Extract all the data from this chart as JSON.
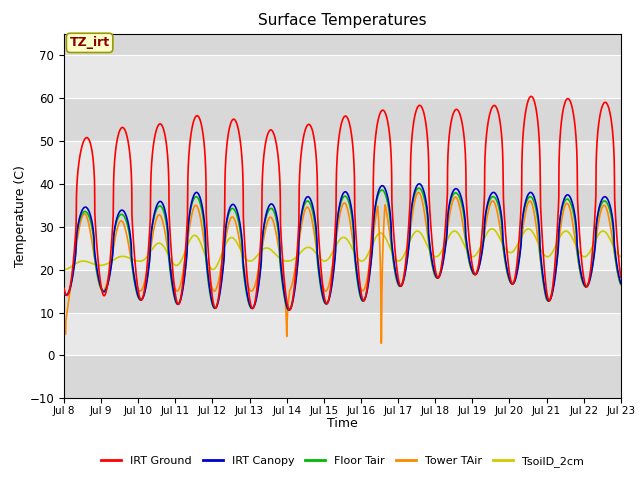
{
  "title": "Surface Temperatures",
  "xlabel": "Time",
  "ylabel": "Temperature (C)",
  "ylim": [
    -10,
    75
  ],
  "xlim": [
    0,
    15
  ],
  "annotation_text": "TZ_irt",
  "annotation_bg": "#ffffcc",
  "annotation_border": "#999900",
  "annotation_text_color": "#880000",
  "grid_color": "#dddddd",
  "bg_color": "#e8e8e8",
  "bg_band_color": "#d8d8d8",
  "xtick_labels": [
    "Jul 8",
    "Jul 9",
    "Jul 10",
    "Jul 11",
    "Jul 12",
    "Jul 13",
    "Jul 14",
    "Jul 15",
    "Jul 16",
    "Jul 17",
    "Jul 18",
    "Jul 19",
    "Jul 20",
    "Jul 21",
    "Jul 22",
    "Jul 23"
  ],
  "legend_entries": [
    "IRT Ground",
    "IRT Canopy",
    "Floor Tair",
    "Tower TAir",
    "TsoilD_2cm"
  ],
  "legend_colors": [
    "#ff0000",
    "#0000cc",
    "#00bb00",
    "#ff8800",
    "#cccc00"
  ],
  "irt_ground_color": "#ff0000",
  "irt_canopy_color": "#0000cc",
  "floor_tair_color": "#00bb00",
  "tower_tair_color": "#ff8800",
  "tsoil_2cm_color": "#cccc00",
  "linewidth": 1.2
}
